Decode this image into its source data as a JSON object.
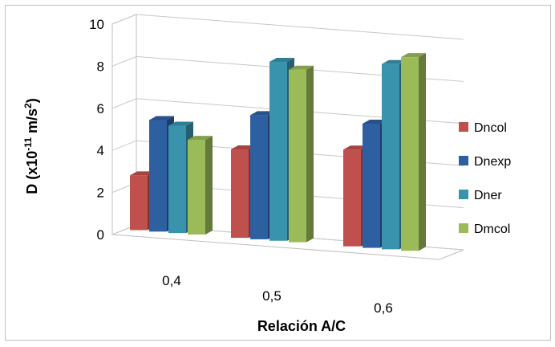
{
  "chart_data": {
    "type": "bar",
    "style": "3d-clustered-column",
    "categories": [
      "0,4",
      "0,5",
      "0,6"
    ],
    "series": [
      {
        "name": "Dncol",
        "values": [
          2.6,
          4.2,
          4.6
        ],
        "color": "#c0504d"
      },
      {
        "name": "Dnexp",
        "values": [
          5.3,
          5.9,
          5.9
        ],
        "color": "#2e5fa1"
      },
      {
        "name": "Dner",
        "values": [
          5.1,
          8.5,
          8.8
        ],
        "color": "#3a93ad"
      },
      {
        "name": "Dmcol",
        "values": [
          4.5,
          8.2,
          9.2
        ],
        "color": "#9bbb59"
      }
    ],
    "ylabel_parts": [
      "D (x10",
      "-11",
      " m/s",
      "2",
      ")"
    ],
    "xlabel": "Relación A/C",
    "ylim": [
      0,
      10
    ],
    "yticks": [
      0,
      2,
      4,
      6,
      8,
      10
    ],
    "grid": true,
    "legend_position": "right"
  }
}
